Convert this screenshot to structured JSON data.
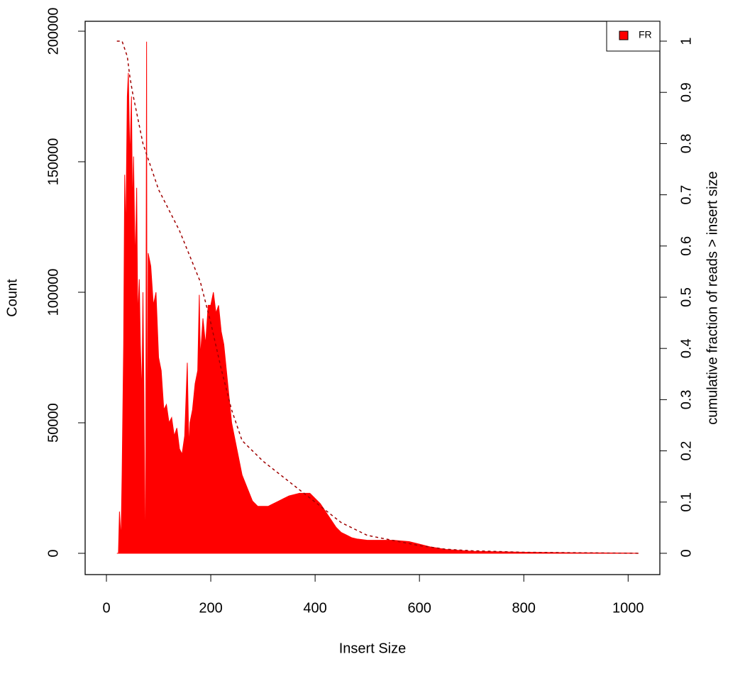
{
  "chart_data": {
    "type": "area",
    "xlabel": "Insert Size",
    "ylabel": "Count",
    "y2label": "cumulative fraction of reads > insert size",
    "xlim": [
      -40.8,
      1060.8
    ],
    "ylim": [
      -8150,
      203800
    ],
    "y2lim": [
      -0.0416,
      1.0388
    ],
    "xticks": [
      0,
      200,
      400,
      600,
      800,
      1000
    ],
    "yticks": [
      0,
      50000,
      100000,
      150000,
      200000
    ],
    "y2ticks": [
      0,
      0.1,
      0.2,
      0.3,
      0.4,
      0.5,
      0.6,
      0.7,
      0.8,
      0.9,
      1
    ],
    "legend": "top-right",
    "series": [
      {
        "name": "FR",
        "color": "#ff0000",
        "x": [
          20,
          23,
          25,
          28,
          30,
          33,
          35,
          37,
          40,
          42,
          45,
          48,
          50,
          52,
          55,
          58,
          60,
          63,
          65,
          68,
          70,
          72,
          74,
          75,
          77,
          78,
          80,
          85,
          90,
          95,
          100,
          105,
          110,
          115,
          120,
          125,
          130,
          135,
          140,
          145,
          150,
          155,
          158,
          160,
          165,
          170,
          175,
          178,
          180,
          185,
          190,
          195,
          200,
          205,
          210,
          215,
          220,
          225,
          230,
          235,
          240,
          250,
          260,
          270,
          280,
          290,
          300,
          310,
          320,
          330,
          340,
          350,
          360,
          370,
          380,
          390,
          400,
          410,
          420,
          430,
          440,
          450,
          460,
          470,
          480,
          500,
          550,
          580,
          600,
          620,
          650,
          700,
          800,
          900,
          1000,
          1020
        ],
        "values": [
          0,
          0,
          16000,
          5000,
          30000,
          80000,
          145000,
          120000,
          175000,
          184000,
          150000,
          175000,
          130000,
          152000,
          110000,
          140000,
          90000,
          105000,
          80000,
          60000,
          100000,
          60000,
          5000,
          5000,
          196000,
          10000,
          115000,
          110000,
          95000,
          100000,
          75000,
          70000,
          55000,
          57000,
          50000,
          52000,
          45000,
          48000,
          40000,
          38000,
          45000,
          73000,
          40000,
          50000,
          55000,
          65000,
          70000,
          99000,
          75000,
          90000,
          80000,
          95000,
          95000,
          100000,
          92000,
          95000,
          85000,
          80000,
          70000,
          60000,
          50000,
          40000,
          30000,
          25000,
          20000,
          18000,
          18000,
          18000,
          19000,
          20000,
          21000,
          22000,
          22500,
          23000,
          23000,
          23000,
          21000,
          19000,
          16000,
          13000,
          10000,
          8000,
          7000,
          6000,
          5500,
          5000,
          5000,
          4500,
          3500,
          2500,
          1500,
          800,
          400,
          200,
          100,
          0
        ]
      },
      {
        "type": "line",
        "axis": "y2",
        "dash": true,
        "color": "#a00000",
        "x": [
          20,
          30,
          40,
          45,
          50,
          60,
          70,
          80,
          100,
          120,
          140,
          160,
          180,
          200,
          220,
          240,
          260,
          300,
          350,
          400,
          450,
          500,
          550,
          600,
          650,
          700,
          800,
          1020
        ],
        "values": [
          1,
          1,
          0.97,
          0.93,
          0.9,
          0.85,
          0.8,
          0.77,
          0.71,
          0.67,
          0.63,
          0.58,
          0.53,
          0.45,
          0.36,
          0.28,
          0.22,
          0.18,
          0.14,
          0.1,
          0.06,
          0.035,
          0.025,
          0.015,
          0.008,
          0.005,
          0.002,
          0
        ]
      }
    ]
  }
}
